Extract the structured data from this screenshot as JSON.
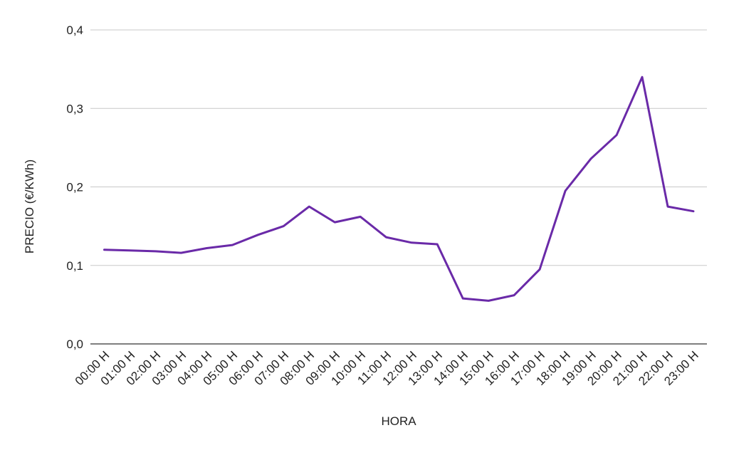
{
  "chart_data": {
    "type": "line",
    "title": "",
    "xlabel": "HORA",
    "ylabel": "PRECIO (€/KWh)",
    "ylim": [
      0,
      0.4
    ],
    "y_ticks": [
      "0,0",
      "0,1",
      "0,2",
      "0,3",
      "0,4"
    ],
    "y_tick_values": [
      0,
      0.1,
      0.2,
      0.3,
      0.4
    ],
    "grid": true,
    "legend": "none",
    "categories": [
      "00:00 H",
      "01:00 H",
      "02:00 H",
      "03:00 H",
      "04:00 H",
      "05:00 H",
      "06:00 H",
      "07:00 H",
      "08:00 H",
      "09:00 H",
      "10:00 H",
      "11:00 H",
      "12:00 H",
      "13:00 H",
      "14:00 H",
      "15:00 H",
      "16:00 H",
      "17:00 H",
      "18:00 H",
      "19:00 H",
      "20:00 H",
      "21:00 H",
      "22:00 H",
      "23:00 H"
    ],
    "series": [
      {
        "color": "#6a2aa8",
        "values": [
          0.12,
          0.119,
          0.118,
          0.116,
          0.122,
          0.126,
          0.139,
          0.15,
          0.175,
          0.155,
          0.162,
          0.136,
          0.129,
          0.127,
          0.058,
          0.055,
          0.062,
          0.095,
          0.195,
          0.236,
          0.266,
          0.34,
          0.175,
          0.169
        ]
      }
    ]
  }
}
